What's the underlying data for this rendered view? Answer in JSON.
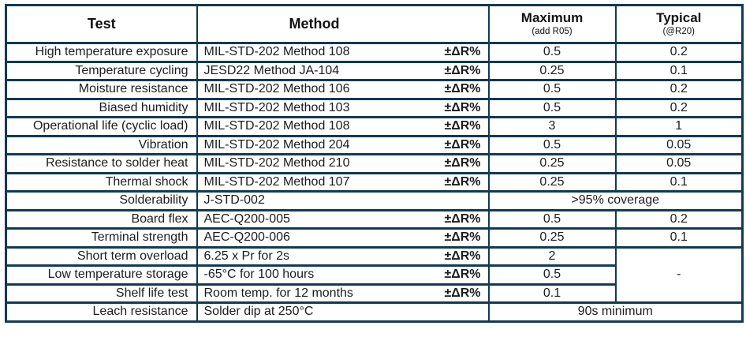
{
  "colors": {
    "border": "#123a52",
    "text": "#1c1c1c",
    "background": "#ffffff"
  },
  "table": {
    "header": {
      "test": "Test",
      "method": "Method",
      "maximum": "Maximum",
      "maximum_sub": "(add R05)",
      "typical": "Typical",
      "typical_sub": "(@R20)"
    },
    "rows": [
      {
        "test": "High temperature exposure",
        "method": "MIL-STD-202 Method 108",
        "delta": "±ΔR%",
        "maximum": "0.5",
        "typical": "0.2"
      },
      {
        "test": "Temperature cycling",
        "method": "JESD22 Method JA-104",
        "delta": "±ΔR%",
        "maximum": "0.25",
        "typical": "0.1"
      },
      {
        "test": "Moisture resistance",
        "method": "MIL-STD-202 Method 106",
        "delta": "±ΔR%",
        "maximum": "0.5",
        "typical": "0.2"
      },
      {
        "test": "Biased humidity",
        "method": "MIL-STD-202 Method 103",
        "delta": "±ΔR%",
        "maximum": "0.5",
        "typical": "0.2"
      },
      {
        "test": "Operational life (cyclic load)",
        "method": "MIL-STD-202 Method 108",
        "delta": "±ΔR%",
        "maximum": "3",
        "typical": "1"
      },
      {
        "test": "Vibration",
        "method": "MIL-STD-202 Method 204",
        "delta": "±ΔR%",
        "maximum": "0.5",
        "typical": "0.05"
      },
      {
        "test": "Resistance to solder heat",
        "method": "MIL-STD-202 Method 210",
        "delta": "±ΔR%",
        "maximum": "0.25",
        "typical": "0.05"
      },
      {
        "test": "Thermal shock",
        "method": "MIL-STD-202 Method 107",
        "delta": "±ΔR%",
        "maximum": "0.25",
        "typical": "0.1"
      },
      {
        "test": "Solderability",
        "method": "J-STD-002",
        "delta": "",
        "merged": ">95% coverage"
      },
      {
        "test": "Board flex",
        "method": "AEC-Q200-005",
        "delta": "±ΔR%",
        "maximum": "0.5",
        "typical": "0.2"
      },
      {
        "test": "Terminal strength",
        "method": "AEC-Q200-006",
        "delta": "±ΔR%",
        "maximum": "0.25",
        "typical": "0.1"
      },
      {
        "test": "Short term overload",
        "method": "6.25 x Pr for 2s",
        "delta": "±ΔR%",
        "maximum": "2",
        "typical": "-",
        "typical_rowspan": 3
      },
      {
        "test": "Low temperature storage",
        "method": "-65°C for 100 hours",
        "delta": "±ΔR%",
        "maximum": "0.5",
        "typical_skip": true
      },
      {
        "test": "Shelf life test",
        "method": "Room temp. for 12 months",
        "delta": "±ΔR%",
        "maximum": "0.1",
        "typical_skip": true
      },
      {
        "test": "Leach resistance",
        "method": "Solder dip at 250°C",
        "delta": "",
        "merged": "90s minimum"
      }
    ]
  }
}
